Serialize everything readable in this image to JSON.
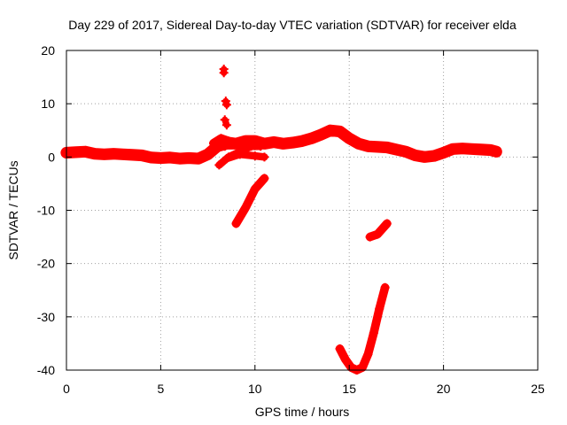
{
  "chart_data": {
    "type": "scatter",
    "title": "Day 229 of 2017, Sidereal Day-to-day VTEC variation (SDTVAR) for receiver elda",
    "xlabel": "GPS time / hours",
    "ylabel": "SDTVAR / TECUs",
    "xlim": [
      0,
      25
    ],
    "ylim": [
      -40,
      20
    ],
    "xticks": [
      0,
      5,
      10,
      15,
      20,
      25
    ],
    "yticks": [
      -40,
      -30,
      -20,
      -10,
      0,
      10,
      20
    ],
    "xtick_labels": [
      "0",
      "5",
      "10",
      "15",
      "20",
      "25"
    ],
    "ytick_labels": [
      "-40",
      "-30",
      "-20",
      "-10",
      "0",
      "10",
      "20"
    ],
    "grid": true,
    "marker": "plus",
    "color": "#ff0000",
    "series": [
      {
        "name": "main-band",
        "thickness": 2.2,
        "points": [
          [
            0,
            0.8
          ],
          [
            0.5,
            0.9
          ],
          [
            1,
            1.0
          ],
          [
            1.5,
            0.6
          ],
          [
            2,
            0.5
          ],
          [
            2.5,
            0.6
          ],
          [
            3,
            0.5
          ],
          [
            3.5,
            0.4
          ],
          [
            4,
            0.3
          ],
          [
            4.5,
            -0.1
          ],
          [
            5,
            -0.2
          ],
          [
            5.5,
            -0.1
          ],
          [
            6,
            -0.3
          ],
          [
            6.5,
            -0.2
          ],
          [
            7,
            -0.3
          ],
          [
            7.5,
            0.5
          ],
          [
            8,
            2.0
          ],
          [
            8.5,
            2.5
          ],
          [
            9,
            2.5
          ],
          [
            9.5,
            3.0
          ],
          [
            10,
            3.0
          ],
          [
            10.5,
            2.5
          ],
          [
            11,
            2.8
          ],
          [
            11.5,
            2.5
          ],
          [
            12,
            2.7
          ],
          [
            12.5,
            3.0
          ],
          [
            13,
            3.5
          ],
          [
            13.5,
            4.2
          ],
          [
            14,
            5.0
          ],
          [
            14.5,
            4.8
          ],
          [
            15,
            3.5
          ],
          [
            15.5,
            2.5
          ],
          [
            16,
            2.0
          ],
          [
            16.5,
            1.9
          ],
          [
            17,
            1.8
          ],
          [
            17.5,
            1.4
          ],
          [
            18,
            1.0
          ],
          [
            18.5,
            0.3
          ],
          [
            19,
            0.0
          ],
          [
            19.5,
            0.2
          ],
          [
            20,
            0.8
          ],
          [
            20.5,
            1.5
          ],
          [
            21,
            1.6
          ],
          [
            21.5,
            1.5
          ],
          [
            22,
            1.4
          ],
          [
            22.5,
            1.3
          ],
          [
            22.8,
            1.0
          ]
        ]
      },
      {
        "name": "upper-branch",
        "thickness": 1.6,
        "points": [
          [
            7.8,
            2.6
          ],
          [
            8.2,
            3.5
          ],
          [
            8.6,
            3.0
          ],
          [
            9.0,
            2.8
          ]
        ]
      },
      {
        "name": "branch-a",
        "thickness": 1.4,
        "points": [
          [
            8.1,
            -1.5
          ],
          [
            8.6,
            0.0
          ],
          [
            9.2,
            1.0
          ],
          [
            9.8,
            2.0
          ],
          [
            10.3,
            2.0
          ]
        ]
      },
      {
        "name": "branch-b",
        "thickness": 1.4,
        "points": [
          [
            8.5,
            -0.3
          ],
          [
            9.2,
            0.5
          ],
          [
            10.0,
            0.2
          ],
          [
            10.5,
            0.0
          ]
        ]
      },
      {
        "name": "spike-segments",
        "thickness": 1.2,
        "points": [
          [
            8.35,
            16.5
          ],
          [
            8.35,
            15.8
          ],
          null,
          [
            8.45,
            10.5
          ],
          [
            8.5,
            9.8
          ],
          null,
          [
            8.4,
            7.0
          ],
          [
            8.5,
            6.0
          ],
          null,
          [
            8.4,
            2.0
          ],
          [
            8.55,
            3.0
          ]
        ]
      },
      {
        "name": "dip-arc",
        "thickness": 1.6,
        "points": [
          [
            9.0,
            -12.5
          ],
          [
            9.5,
            -9.5
          ],
          [
            10.0,
            -6.0
          ],
          [
            10.5,
            -4.0
          ]
        ]
      },
      {
        "name": "deep-dip",
        "thickness": 1.6,
        "points": [
          [
            14.5,
            -36.0
          ],
          [
            14.8,
            -38.0
          ],
          [
            15.1,
            -39.5
          ],
          [
            15.4,
            -40.0
          ],
          [
            15.7,
            -39.5
          ],
          [
            16.0,
            -37.0
          ],
          [
            16.3,
            -33.0
          ],
          [
            16.6,
            -28.5
          ],
          [
            16.9,
            -24.5
          ]
        ]
      },
      {
        "name": "late-segment",
        "thickness": 1.6,
        "points": [
          [
            16.1,
            -15.0
          ],
          [
            16.5,
            -14.5
          ],
          [
            17.0,
            -12.5
          ]
        ]
      }
    ]
  }
}
